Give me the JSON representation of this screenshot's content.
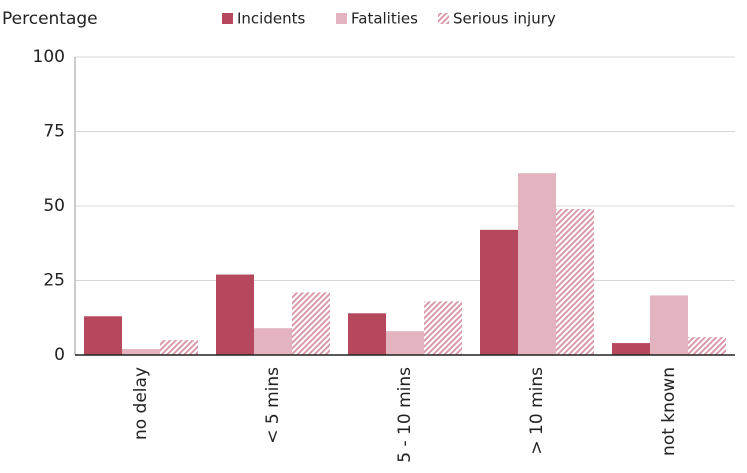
{
  "chart_data": {
    "type": "bar",
    "y_label": "Percentage",
    "categories": [
      "no delay",
      "< 5 mins",
      "5 - 10 mins",
      "> 10 mins",
      "not known"
    ],
    "series": [
      {
        "name": "Incidents",
        "color": "#b5485c",
        "values": [
          13,
          27,
          14,
          42,
          4
        ]
      },
      {
        "name": "Fatalities",
        "color": "#e3b4c0",
        "values": [
          2,
          9,
          8,
          61,
          20
        ]
      },
      {
        "name": "Serious injury",
        "color": "#d99aaa",
        "pattern": "hatch",
        "values": [
          5,
          21,
          18,
          49,
          6
        ]
      }
    ],
    "ylim": [
      0,
      100
    ],
    "yticks": [
      0,
      25,
      50,
      75,
      100
    ],
    "grid": true
  }
}
